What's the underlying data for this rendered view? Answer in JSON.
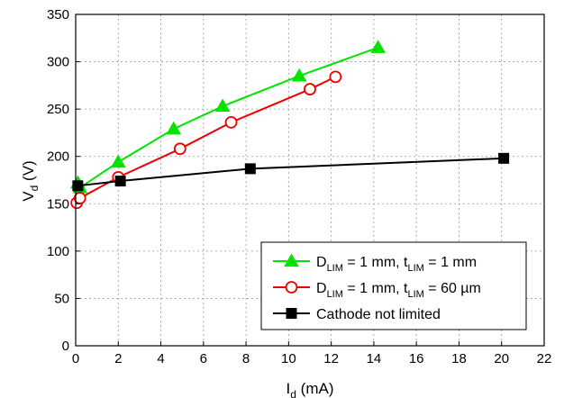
{
  "chart_data": {
    "type": "line",
    "xlabel": {
      "main": "I",
      "sub": "d",
      "unit": " (mA)"
    },
    "ylabel": {
      "main": "V",
      "sub": "d",
      "unit": " (V)"
    },
    "xlim": [
      0,
      22
    ],
    "ylim": [
      0,
      350
    ],
    "xticks": [
      "0",
      "2",
      "4",
      "6",
      "8",
      "10",
      "12",
      "14",
      "16",
      "18",
      "20",
      "22"
    ],
    "yticks": [
      "0",
      "50",
      "100",
      "150",
      "200",
      "250",
      "300",
      "350"
    ],
    "grid": true,
    "legend_position": "bottom-right",
    "series": [
      {
        "legend": {
          "pre": "D",
          "sub1": "LIM",
          "mid": " = 1 mm, t",
          "sub2": "LIM",
          "post": " = 1 mm"
        },
        "color": "#00e400",
        "marker": "triangle-filled",
        "x": [
          0.1,
          0.2,
          2.0,
          4.6,
          6.9,
          10.5,
          14.2
        ],
        "y": [
          172,
          167,
          194,
          229,
          253,
          285,
          315
        ]
      },
      {
        "legend": {
          "pre": "D",
          "sub1": "LIM",
          "mid": " = 1 mm, t",
          "sub2": "LIM",
          "post": " = 60 µm"
        },
        "color": "#ee0000",
        "marker": "circle-open",
        "x": [
          0.05,
          0.2,
          2.0,
          4.9,
          7.3,
          11.0,
          12.2
        ],
        "y": [
          151,
          156,
          178,
          208,
          236,
          271,
          284
        ]
      },
      {
        "legend": {
          "pre": "Cathode not limited",
          "sub1": "",
          "mid": "",
          "sub2": "",
          "post": ""
        },
        "color": "#000000",
        "marker": "square-filled",
        "x": [
          0.1,
          2.1,
          8.2,
          20.1
        ],
        "y": [
          169,
          174,
          187,
          198
        ]
      }
    ]
  }
}
